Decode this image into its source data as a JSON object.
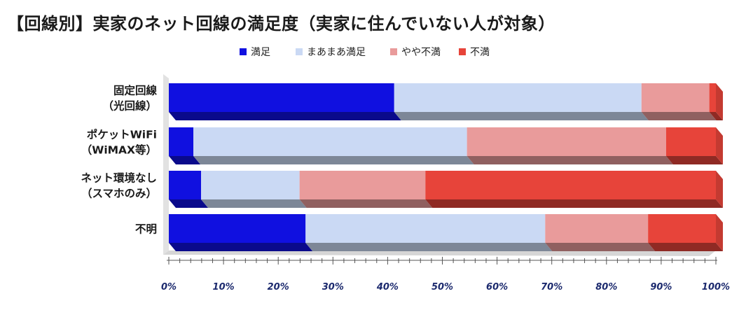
{
  "title": "【回線別】実家のネット回線の満足度（実家に住んでいない人が対象）",
  "colors": {
    "manzoku": "#1010e0",
    "maamaa": "#cad9f4",
    "yaya": "#e99b9b",
    "fuman": "#e7443a"
  },
  "chart_data": {
    "type": "bar",
    "orientation": "horizontal-stacked-100",
    "categories": [
      "固定回線\n（光回線）",
      "ポケットWiFi\n（WiMAX等）",
      "ネット環境なし\n（スマホのみ）",
      "不明"
    ],
    "series": [
      {
        "name": "満足",
        "values": [
          41.2,
          4.5,
          5.9,
          25.0
        ]
      },
      {
        "name": "まあまあ満足",
        "values": [
          45.2,
          50.0,
          18.0,
          43.8
        ]
      },
      {
        "name": "やや不満",
        "values": [
          12.4,
          36.4,
          23.0,
          18.8
        ]
      },
      {
        "name": "不満",
        "values": [
          1.2,
          9.1,
          53.1,
          12.4
        ]
      }
    ],
    "xlim": [
      0,
      100
    ],
    "xticks": [
      "0%",
      "10%",
      "20%",
      "30%",
      "40%",
      "50%",
      "60%",
      "70%",
      "80%",
      "90%",
      "100%"
    ],
    "legend_position": "top",
    "grid": false
  }
}
